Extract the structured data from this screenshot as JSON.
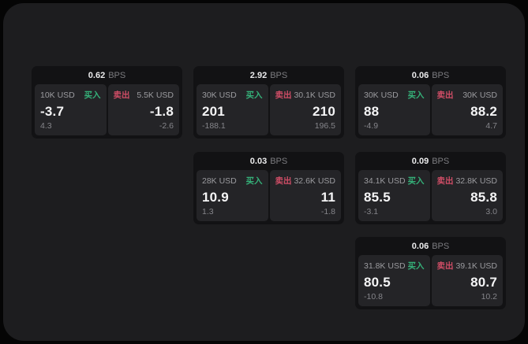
{
  "labels": {
    "buy": "买入",
    "sell": "卖出",
    "bps_unit": "BPS"
  },
  "colors": {
    "buy_green": "#35b179",
    "sell_red": "#cf4d66",
    "surface": "#1d1d1f",
    "card_bg": "#121214",
    "pane_bg": "#242427"
  },
  "cards": [
    {
      "bps": "0.62",
      "unit": "BPS",
      "buy": {
        "amount": "10K USD",
        "label": "买入",
        "value": "-3.7",
        "sub": "4.3"
      },
      "sell": {
        "amount": "5.5K USD",
        "label": "卖出",
        "value": "-1.8",
        "sub": "-2.6"
      }
    },
    {
      "bps": "2.92",
      "unit": "BPS",
      "buy": {
        "amount": "30K USD",
        "label": "买入",
        "value": "201",
        "sub": "-188.1"
      },
      "sell": {
        "amount": "30.1K USD",
        "label": "卖出",
        "value": "210",
        "sub": "196.5"
      }
    },
    {
      "bps": "0.06",
      "unit": "BPS",
      "buy": {
        "amount": "30K USD",
        "label": "买入",
        "value": "88",
        "sub": "-4.9"
      },
      "sell": {
        "amount": "30K USD",
        "label": "卖出",
        "value": "88.2",
        "sub": "4.7"
      }
    },
    {
      "bps": "0.03",
      "unit": "BPS",
      "buy": {
        "amount": "28K USD",
        "label": "买入",
        "value": "10.9",
        "sub": "1.3"
      },
      "sell": {
        "amount": "32.6K USD",
        "label": "卖出",
        "value": "11",
        "sub": "-1.8"
      }
    },
    {
      "bps": "0.09",
      "unit": "BPS",
      "buy": {
        "amount": "34.1K USD",
        "label": "买入",
        "value": "85.5",
        "sub": "-3.1"
      },
      "sell": {
        "amount": "32.8K USD",
        "label": "卖出",
        "value": "85.8",
        "sub": "3.0"
      }
    },
    {
      "bps": "0.06",
      "unit": "BPS",
      "buy": {
        "amount": "31.8K USD",
        "label": "买入",
        "value": "80.5",
        "sub": "-10.8"
      },
      "sell": {
        "amount": "39.1K USD",
        "label": "卖出",
        "value": "80.7",
        "sub": "10.2"
      }
    }
  ]
}
